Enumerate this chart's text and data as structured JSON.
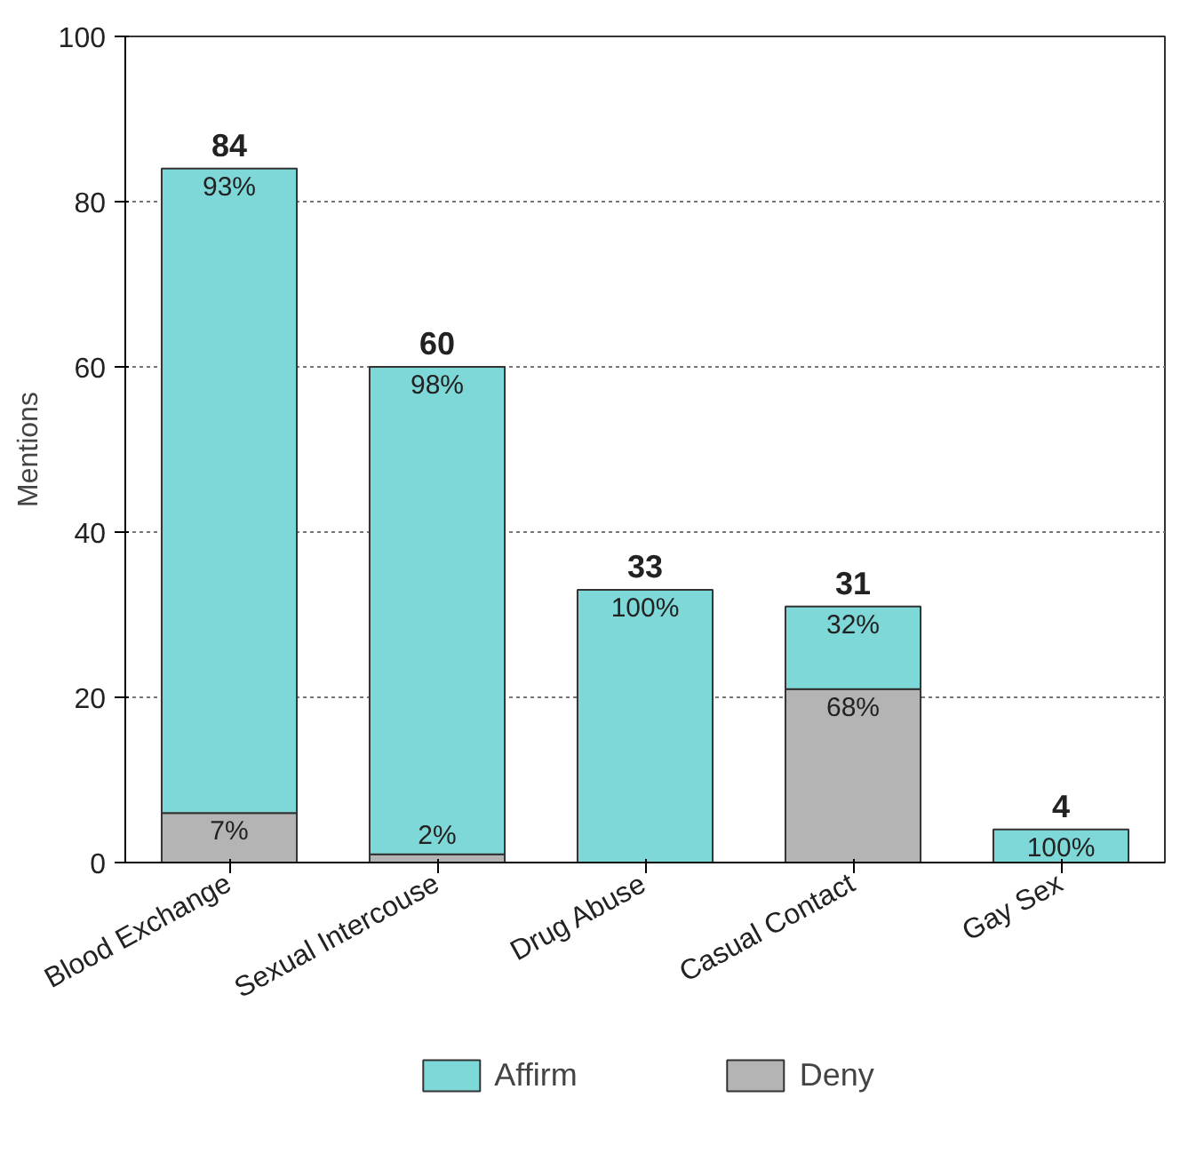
{
  "chart_data": {
    "type": "bar",
    "stacked": true,
    "ylabel": "Mentions",
    "categories": [
      "Blood Exchange",
      "Sexual Intercouse",
      "Drug Abuse",
      "Casual Contact",
      "Gay Sex"
    ],
    "series": [
      {
        "name": "Deny",
        "color": "#b4b4b4",
        "values": [
          6,
          1,
          null,
          21,
          null
        ]
      },
      {
        "name": "Affirm",
        "color": "#7fd8d8",
        "values": [
          78,
          59,
          33,
          10,
          4
        ]
      }
    ],
    "annotations": [
      {
        "text": "7%",
        "x": "Blood Exchange",
        "y": 6
      },
      {
        "text": "93%",
        "x": "Blood Exchange",
        "y": 84
      },
      {
        "text": "2%",
        "x": "Sexual Intercouse",
        "y": 1
      },
      {
        "text": "98%",
        "x": "Sexual Intercouse",
        "y": 60
      },
      {
        "text": "100%",
        "x": "Drug Abuse",
        "y": 33
      },
      {
        "text": "68%",
        "x": "Casual Contact",
        "y": 21
      },
      {
        "text": "32%",
        "x": "Casual Contact",
        "y": 31
      },
      {
        "text": "100%",
        "x": "Gay Sex",
        "y": 4
      }
    ],
    "totals": [
      "84",
      "60",
      "33",
      "31",
      "4"
    ],
    "ylim": [
      0,
      100
    ],
    "yticks": [
      0,
      20,
      40,
      60,
      80,
      100
    ],
    "grid": "y",
    "legend": "bottom"
  }
}
